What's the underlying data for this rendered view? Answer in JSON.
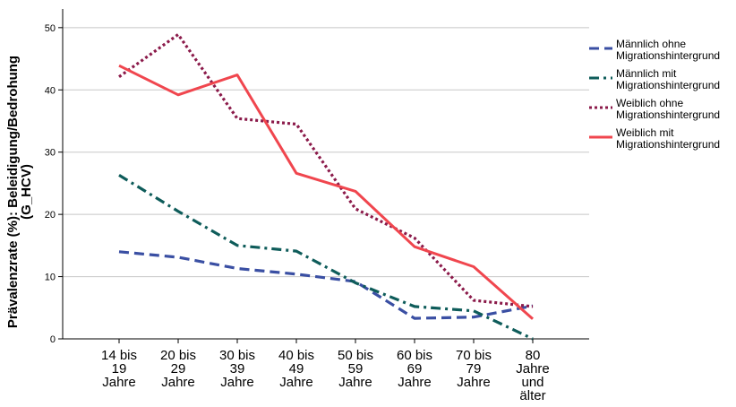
{
  "chart_data": {
    "type": "line",
    "title": "",
    "xlabel": "",
    "ylabel": [
      "Prävalenzrate (%): Beleidigung/Bedrohung",
      "(G_HCV)"
    ],
    "ylim": [
      0,
      53
    ],
    "yticks": [
      0,
      10,
      20,
      30,
      40,
      50
    ],
    "grid": "horizontal",
    "legend_position": "right",
    "categories": [
      [
        "14 bis",
        "19",
        "Jahre"
      ],
      [
        "20 bis",
        "29",
        "Jahre"
      ],
      [
        "30 bis",
        "39",
        "Jahre"
      ],
      [
        "40 bis",
        "49",
        "Jahre"
      ],
      [
        "50 bis",
        "59",
        "Jahre"
      ],
      [
        "60 bis",
        "69",
        "Jahre"
      ],
      [
        "70 bis",
        "79",
        "Jahre"
      ],
      [
        "80",
        "Jahre",
        "und",
        "älter"
      ]
    ],
    "series": [
      {
        "name": [
          "Männlich ohne",
          "Migrationshintergrund"
        ],
        "color": "#3a4fa3",
        "dash": "dashed",
        "values": [
          14.0,
          13.1,
          11.3,
          10.4,
          9.2,
          3.3,
          3.5,
          5.3
        ]
      },
      {
        "name": [
          "Männlich mit",
          "Migrationshintergrund"
        ],
        "color": "#0e5c5a",
        "dash": "dashdot",
        "values": [
          26.3,
          20.5,
          15.0,
          14.1,
          9.0,
          5.2,
          4.5,
          0.0
        ]
      },
      {
        "name": [
          "Weiblich ohne",
          "Migrationshintergrund"
        ],
        "color": "#8b1a4a",
        "dash": "dotted",
        "values": [
          42.1,
          48.9,
          35.4,
          34.5,
          20.9,
          16.2,
          6.2,
          5.2
        ]
      },
      {
        "name": [
          "Weiblich mit",
          "Migrationshintergrund"
        ],
        "color": "#f0464e",
        "dash": "solid",
        "values": [
          43.9,
          39.2,
          42.4,
          26.6,
          23.7,
          14.8,
          11.6,
          3.2
        ]
      }
    ]
  }
}
